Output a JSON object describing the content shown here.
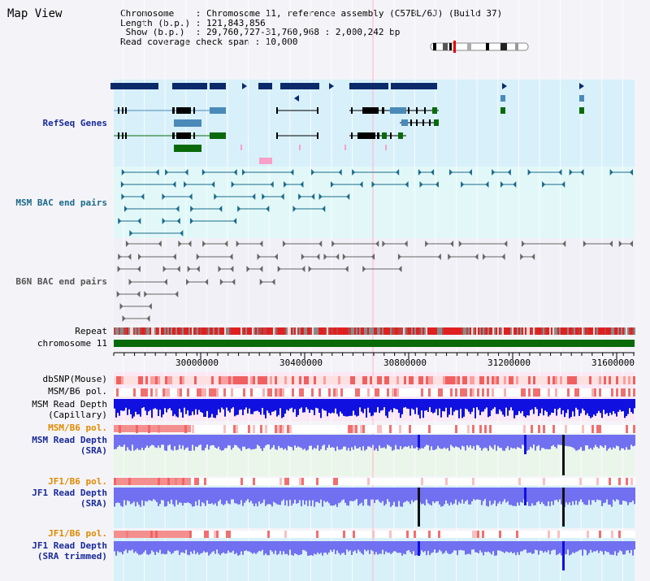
{
  "title": "Map View",
  "info": {
    "line1": "Chromosome    : Chromosome 11, reference assembly (C57BL/6J) (Build 37)",
    "line2": "Length (b.p.) : 121,843,856",
    "line3": " Show (b.p.)  : 29,760,727-31,760,968 : 2,000,242 bp",
    "line4": "Read coverage check span : 10,000"
  },
  "labels": {
    "refseq": "RefSeq Genes",
    "msm_bac": "MSM BAC end pairs",
    "b6n_bac": "B6N BAC end pairs",
    "repeat": "Repeat",
    "chromosome": "chromosome 11",
    "dbsnp": "dbSNP(Mouse)",
    "msm_b6_pol_1": "MSM/B6 pol.",
    "msm_depth_cap_1": "MSM Read Depth",
    "msm_depth_cap_2": "(Capillary)",
    "msm_b6_pol_2": "MSM/B6 pol.",
    "msm_depth_sra_1": "MSM Read Depth",
    "msm_depth_sra_2": "(SRA)",
    "jf1_b6_pol_1": "JF1/B6 pol.",
    "jf1_depth_sra_1": "JF1 Read Depth",
    "jf1_depth_sra_2": "(SRA)",
    "jf1_b6_pol_2": "JF1/B6 pol.",
    "jf1_depth_trim_1": "JF1 Read Depth",
    "jf1_depth_trim_2": "(SRA trimmed)"
  },
  "axis": {
    "ticks": [
      "30000000",
      "30400000",
      "30800000",
      "31200000",
      "31600000"
    ]
  },
  "colors": {
    "refseq_bg": "#d8f0fa",
    "msm_bac_bg": "#e2f8f8",
    "b6n_bac_bg": "#f4f4f8",
    "gene_dark": "#0a2a6a",
    "gene_mid": "#4a8ab8",
    "gene_green": "#0a6a0a",
    "chromosome": "#0a6a0a",
    "depth_dark": "#1010e0",
    "depth_light": "#7070f0"
  }
}
